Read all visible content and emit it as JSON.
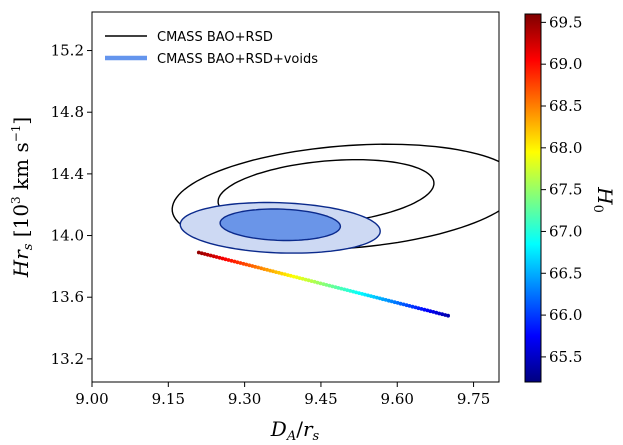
{
  "chart_data": {
    "type": "scatter",
    "xlabel": "D_A/r_s",
    "ylabel": "Hr_s [10^3 km s^-1]",
    "xlim": [
      9.0,
      9.8
    ],
    "ylim": [
      13.05,
      15.45
    ],
    "xticks": [
      "9.00",
      "9.15",
      "9.30",
      "9.45",
      "9.60",
      "9.75"
    ],
    "yticks": [
      "13.2",
      "13.6",
      "14.0",
      "14.4",
      "14.8",
      "15.2"
    ],
    "legend": {
      "position": "top-left",
      "entries": [
        {
          "label": "CMASS BAO+RSD",
          "color": "#000000",
          "style": "line"
        },
        {
          "label": "CMASS BAO+RSD+voids",
          "color": "#6495ed",
          "style": "thick-line"
        }
      ]
    },
    "contours": [
      {
        "series": "CMASS BAO+RSD",
        "level": "2-sigma",
        "center": [
          9.5,
          14.25
        ],
        "semi_axes": [
          0.3,
          0.38
        ],
        "rotation_deg": -45,
        "stroke": "#000000",
        "fill": "none"
      },
      {
        "series": "CMASS BAO+RSD",
        "level": "1-sigma",
        "center": [
          9.46,
          14.28
        ],
        "semi_axes": [
          0.18,
          0.24
        ],
        "rotation_deg": -45,
        "stroke": "#000000",
        "fill": "none"
      },
      {
        "series": "CMASS BAO+RSD+voids",
        "level": "2-sigma",
        "center": [
          9.37,
          14.05
        ],
        "semi_axes": [
          0.2,
          0.16
        ],
        "rotation_deg": -18,
        "stroke": "#0b2a8c",
        "fill": "#cdd9f3"
      },
      {
        "series": "CMASS BAO+RSD+voids",
        "level": "1-sigma",
        "center": [
          9.37,
          14.07
        ],
        "semi_axes": [
          0.12,
          0.1
        ],
        "rotation_deg": -18,
        "stroke": "#0b2a8c",
        "fill": "#6a95e8"
      }
    ],
    "scatter": {
      "x_start": 9.21,
      "y_start": 13.89,
      "x_end": 9.7,
      "y_end": 13.48,
      "h0_start": 69.5,
      "h0_end": 65.4,
      "n_points": 85
    },
    "colorbar": {
      "label": "H_0",
      "range": [
        65.2,
        69.6
      ],
      "ticks": [
        "65.5",
        "66.0",
        "66.5",
        "67.0",
        "67.5",
        "68.0",
        "68.5",
        "69.0",
        "69.5"
      ],
      "colormap": [
        "#00007f",
        "#0000ff",
        "#007fff",
        "#00ffff",
        "#7fff7f",
        "#ffff00",
        "#ff7f00",
        "#ff0000",
        "#7f0000"
      ]
    }
  }
}
